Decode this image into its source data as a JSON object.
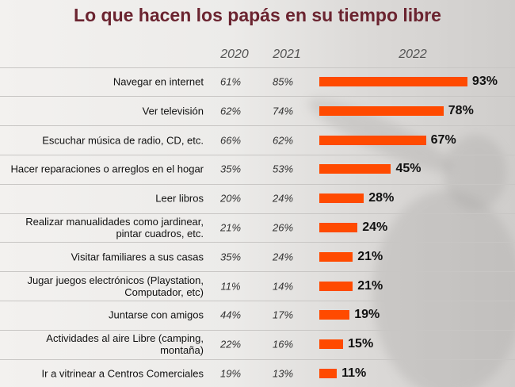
{
  "chart_data": {
    "type": "bar",
    "title": "Lo que hacen los papás en su tiempo libre",
    "categories": [
      "Navegar en internet",
      "Ver televisión",
      "Escuchar música de radio, CD, etc.",
      "Hacer reparaciones o arreglos en el hogar",
      "Leer libros",
      "Realizar manualidades como jardinear, pintar cuadros, etc.",
      "Visitar familiares a sus casas",
      "Jugar juegos electrónicos (Playstation, Computador, etc)",
      "Juntarse con amigos",
      "Actividades al aire Libre (camping, montaña)",
      "Ir a vitrinear a Centros Comerciales"
    ],
    "series": [
      {
        "name": "2020",
        "values": [
          61,
          62,
          66,
          35,
          20,
          21,
          35,
          11,
          44,
          22,
          19
        ],
        "value_labels": [
          "61%",
          "62%",
          "66%",
          "35%",
          "20%",
          "21%",
          "35%",
          "11%",
          "44%",
          "22%",
          "19%"
        ]
      },
      {
        "name": "2021",
        "values": [
          85,
          74,
          62,
          53,
          24,
          26,
          24,
          14,
          17,
          16,
          13
        ],
        "value_labels": [
          "85%",
          "74%",
          "62%",
          "53%",
          "24%",
          "26%",
          "24%",
          "14%",
          "17%",
          "16%",
          "13%"
        ]
      },
      {
        "name": "2022",
        "color": "#ff4a00",
        "values": [
          93,
          78,
          67,
          45,
          28,
          24,
          21,
          21,
          19,
          15,
          11
        ],
        "value_labels": [
          "93%",
          "78%",
          "67%",
          "45%",
          "28%",
          "24%",
          "21%",
          "21%",
          "19%",
          "15%",
          "11%"
        ]
      }
    ]
  }
}
